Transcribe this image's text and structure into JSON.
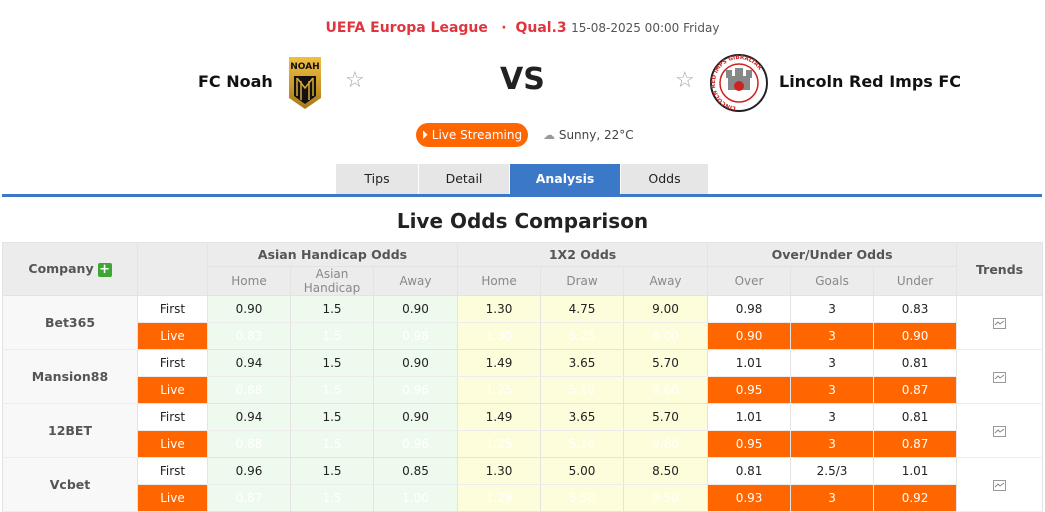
{
  "header": {
    "league": "UEFA Europa League",
    "separator": "·",
    "round": "Qual.3",
    "datetime": "15-08-2025 00:00 Friday"
  },
  "match": {
    "home": "FC Noah",
    "away": "Lincoln Red Imps FC",
    "vs": "VS",
    "home_logo_text": "NOAH",
    "away_logo_text": "LINCOLN RED IMPS GIBRALTAR"
  },
  "live_label": "Live Streaming",
  "weather": "Sunny, 22°C",
  "tabs": [
    {
      "label": "Tips"
    },
    {
      "label": "Detail"
    },
    {
      "label": "Analysis",
      "active": true
    },
    {
      "label": "Odds"
    }
  ],
  "section_title": "Live Odds Comparison",
  "table": {
    "company_label": "Company",
    "groups": [
      "Asian Handicap Odds",
      "1X2 Odds",
      "Over/Under Odds"
    ],
    "trends_label": "Trends",
    "subheaders": [
      "Home",
      "Asian Handicap",
      "Away",
      "Home",
      "Draw",
      "Away",
      "Over",
      "Goals",
      "Under"
    ],
    "rows": [
      {
        "company": "Bet365",
        "first": [
          "0.90",
          "1.5",
          "0.90",
          "1.30",
          "4.75",
          "9.00",
          "0.98",
          "3",
          "0.83"
        ],
        "live": [
          "0.83",
          "1.5",
          "0.98",
          "1.30",
          "5.25",
          "8.00",
          "0.90",
          "3",
          "0.90"
        ]
      },
      {
        "company": "Mansion88",
        "first": [
          "0.94",
          "1.5",
          "0.90",
          "1.49",
          "3.65",
          "5.70",
          "1.01",
          "3",
          "0.81"
        ],
        "live": [
          "0.88",
          "1.5",
          "0.96",
          "1.25",
          "5.10",
          "9.60",
          "0.95",
          "3",
          "0.87"
        ]
      },
      {
        "company": "12BET",
        "first": [
          "0.94",
          "1.5",
          "0.90",
          "1.49",
          "3.65",
          "5.70",
          "1.01",
          "3",
          "0.81"
        ],
        "live": [
          "0.88",
          "1.5",
          "0.96",
          "1.25",
          "5.10",
          "9.60",
          "0.95",
          "3",
          "0.87"
        ]
      },
      {
        "company": "Vcbet",
        "first": [
          "0.96",
          "1.5",
          "0.85",
          "1.30",
          "5.00",
          "8.50",
          "0.81",
          "2.5/3",
          "1.01"
        ],
        "live": [
          "0.87",
          "1.5",
          "1.00",
          "1.29",
          "5.50",
          "9.50",
          "0.93",
          "3",
          "0.92"
        ]
      }
    ],
    "first_label": "First",
    "live_label": "Live"
  },
  "colors": {
    "accent": "#3b78c8",
    "league": "#e0353f",
    "live": "#ff6600",
    "ah_bg": "#effaee",
    "x12_bg": "#fdfddc"
  }
}
